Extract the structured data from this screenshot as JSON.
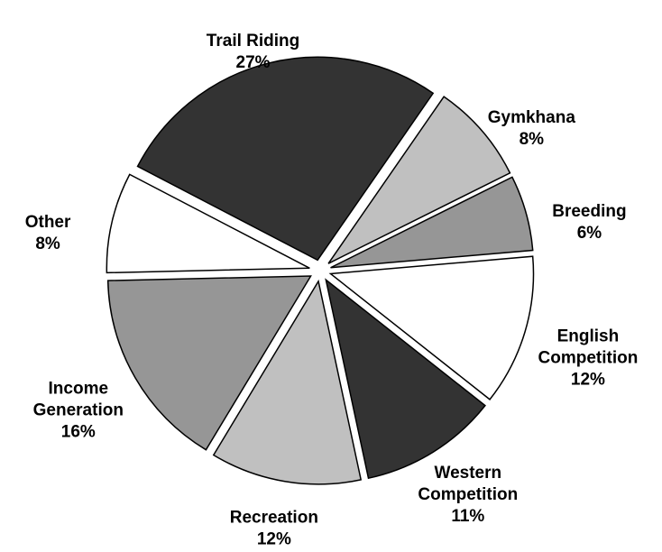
{
  "chart_data": {
    "type": "pie",
    "categories": [
      "Trail Riding",
      "Gymkhana",
      "Breeding",
      "English Competition",
      "Western Competition",
      "Recreation",
      "Income Generation",
      "Other"
    ],
    "values": [
      27,
      8,
      6,
      12,
      11,
      12,
      16,
      8
    ],
    "value_labels": [
      "27%",
      "8%",
      "6%",
      "12%",
      "11%",
      "12%",
      "16%",
      "8%"
    ],
    "colors": [
      "#333333",
      "#c0c0c0",
      "#969696",
      "#ffffff",
      "#333333",
      "#c0c0c0",
      "#969696",
      "#ffffff"
    ]
  }
}
